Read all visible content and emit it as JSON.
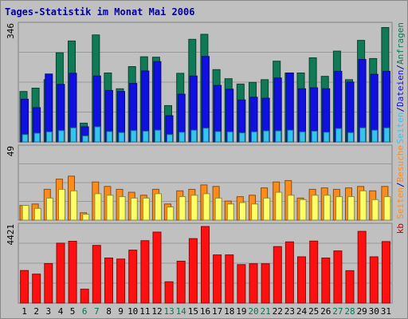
{
  "chart_data": {
    "type": "bar",
    "title": "Tages-Statistik im Monat Mai 2006",
    "days": [
      "1",
      "2",
      "3",
      "4",
      "5",
      "6",
      "7",
      "8",
      "9",
      "10",
      "11",
      "12",
      "13",
      "14",
      "15",
      "16",
      "17",
      "18",
      "19",
      "20",
      "21",
      "22",
      "23",
      "24",
      "25",
      "26",
      "27",
      "28",
      "29",
      "30",
      "31"
    ],
    "weekend_days": [
      "6",
      "7",
      "13",
      "14",
      "20",
      "21",
      "27",
      "28"
    ],
    "panels": [
      {
        "id": "top",
        "ymax_label": "346",
        "ymax": 346,
        "series": [
          {
            "name": "Anfragen",
            "color": "#0f7a55",
            "values": [
              150,
              160,
              185,
              265,
              300,
              56,
              318,
              205,
              158,
              224,
              253,
              252,
              108,
              204,
              305,
              320,
              215,
              188,
              172,
              177,
              185,
              240,
              205,
              205,
              250,
              195,
              270,
              185,
              302,
              248,
              340
            ]
          },
          {
            "name": "Dateien",
            "color": "#1010e0",
            "values": [
              127,
              102,
              202,
              171,
              204,
              45,
              196,
              153,
              150,
              174,
              211,
              239,
              78,
              142,
              196,
              254,
              168,
              157,
              125,
              133,
              130,
              190,
              205,
              158,
              161,
              158,
              210,
              178,
              245,
              201,
              210
            ]
          },
          {
            "name": "Seiten",
            "color": "#33c4f0",
            "values": [
              22,
              26,
              30,
              34,
              42,
              18,
              45,
              31,
              28,
              34,
              32,
              35,
              22,
              29,
              35,
              41,
              31,
              30,
              27,
              30,
              33,
              33,
              35,
              30,
              32,
              29,
              40,
              28,
              42,
              35,
              42
            ]
          }
        ],
        "legend": [
          "Seiten",
          "/",
          "Dateien",
          "/",
          "Anfragen"
        ],
        "legend_colors": [
          "#33c4f0",
          "#000080",
          "#1010e0",
          "#000080",
          "#0f7a55"
        ]
      },
      {
        "id": "middle",
        "ymax_label": "49",
        "ymax": 49,
        "series": [
          {
            "name": "Besuche",
            "color": "#ff8c1a",
            "values": [
              10,
              11,
              21,
              28,
              30,
              5,
              26,
              23,
              21,
              19,
              17,
              21,
              11,
              20,
              21,
              24,
              23,
              13,
              16,
              17,
              22,
              26,
              27,
              15,
              21,
              22,
              21,
              22,
              23,
              20,
              23
            ]
          },
          {
            "name": "Seiten",
            "color": "#ffff66",
            "values": [
              10,
              8,
              15,
              21,
              20,
              4,
              18,
              17,
              16,
              15,
              15,
              18,
              9,
              16,
              17,
              18,
              15,
              11,
              12,
              11,
              15,
              19,
              17,
              14,
              17,
              17,
              16,
              16,
              20,
              14,
              16
            ]
          }
        ],
        "legend": [
          "Seiten",
          "/",
          "Besuche"
        ],
        "legend_colors": [
          "#ff8c1a",
          "#000080",
          "#ff8c1a"
        ]
      },
      {
        "id": "bottom",
        "ymax_label": "4421",
        "ymax": 4421,
        "series": [
          {
            "name": "kb",
            "color": "#ff1010",
            "values": [
              1880,
              1670,
              2280,
              3460,
              3570,
              800,
              3330,
              2600,
              2540,
              3060,
              3600,
              4100,
              1230,
              2420,
              3720,
              4421,
              2780,
              2780,
              2220,
              2270,
              2270,
              3260,
              3530,
              2670,
              3580,
              2600,
              3010,
              1870,
              4140,
              2670,
              3550
            ]
          }
        ],
        "legend": [
          "kb"
        ],
        "legend_colors": [
          "#cc0000"
        ]
      }
    ],
    "grid": true
  }
}
